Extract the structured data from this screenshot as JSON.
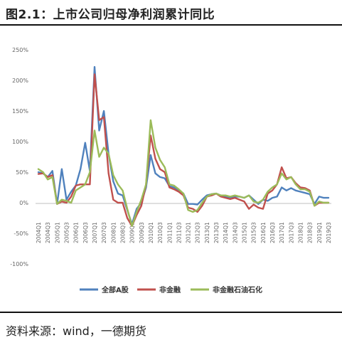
{
  "header": {
    "title": "图2.1：上市公司归母净利润累计同比"
  },
  "footer": {
    "source": "资料来源：wind，一德期货"
  },
  "chart_data": {
    "type": "line",
    "title": "",
    "xlabel": "",
    "ylabel": "",
    "ylim": [
      -100,
      250
    ],
    "y_ticks": [
      "250%",
      "200%",
      "150%",
      "100%",
      "50%",
      "0%",
      "-50%",
      "-100%"
    ],
    "y_tick_values": [
      250,
      200,
      150,
      100,
      50,
      0,
      -50,
      -100
    ],
    "grid": false,
    "legend_position": "bottom",
    "x_tick_labels": [
      "2004Q1",
      "2004Q3",
      "2005Q1",
      "2005Q3",
      "2006Q1",
      "2006Q3",
      "2007Q1",
      "2007Q3",
      "2008Q1",
      "2008Q3",
      "2009Q1",
      "2009Q3",
      "2010Q1",
      "2010Q3",
      "2011Q1",
      "2011Q3",
      "2012Q1",
      "2012Q3",
      "2013Q1",
      "2013Q3",
      "2014Q1",
      "2014Q3",
      "2015Q1",
      "2015Q3",
      "2016Q1",
      "2016Q3",
      "2017Q1",
      "2017Q3",
      "2018Q1",
      "2018Q3",
      "2019Q1",
      "2019Q3"
    ],
    "x": [
      "2004Q1",
      "2004Q2",
      "2004Q3",
      "2004Q4",
      "2005Q1",
      "2005Q2",
      "2005Q3",
      "2005Q4",
      "2006Q1",
      "2006Q2",
      "2006Q3",
      "2006Q4",
      "2007Q1",
      "2007Q2",
      "2007Q3",
      "2007Q4",
      "2008Q1",
      "2008Q2",
      "2008Q3",
      "2008Q4",
      "2009Q1",
      "2009Q2",
      "2009Q3",
      "2009Q4",
      "2010Q1",
      "2010Q2",
      "2010Q3",
      "2010Q4",
      "2011Q1",
      "2011Q2",
      "2011Q3",
      "2011Q4",
      "2012Q1",
      "2012Q2",
      "2012Q3",
      "2012Q4",
      "2013Q1",
      "2013Q2",
      "2013Q3",
      "2013Q4",
      "2014Q1",
      "2014Q2",
      "2014Q3",
      "2014Q4",
      "2015Q1",
      "2015Q2",
      "2015Q3",
      "2015Q4",
      "2016Q1",
      "2016Q2",
      "2016Q3",
      "2016Q4",
      "2017Q1",
      "2017Q2",
      "2017Q3",
      "2017Q4",
      "2018Q1",
      "2018Q2",
      "2018Q3",
      "2018Q4",
      "2019Q1",
      "2019Q2",
      "2019Q3"
    ],
    "series": [
      {
        "name": "全部A股",
        "color": "#4f81bd",
        "values": [
          50,
          48,
          42,
          52,
          -2,
          55,
          5,
          18,
          28,
          55,
          98,
          52,
          222,
          118,
          150,
          80,
          35,
          15,
          12,
          -12,
          -35,
          -10,
          0,
          25,
          78,
          48,
          42,
          40,
          27,
          25,
          20,
          15,
          -2,
          -2,
          -3,
          5,
          12,
          14,
          15,
          12,
          10,
          9,
          10,
          10,
          8,
          12,
          5,
          -2,
          5,
          3,
          8,
          10,
          25,
          20,
          24,
          20,
          18,
          16,
          14,
          -2,
          10,
          8,
          8
        ]
      },
      {
        "name": "非金融",
        "color": "#c0504d",
        "values": [
          47,
          48,
          42,
          45,
          -2,
          2,
          0,
          10,
          28,
          30,
          30,
          30,
          210,
          135,
          140,
          48,
          5,
          0,
          0,
          -25,
          -38,
          -20,
          -5,
          30,
          110,
          72,
          55,
          50,
          25,
          22,
          18,
          12,
          -8,
          -10,
          -15,
          -5,
          10,
          12,
          15,
          10,
          8,
          6,
          8,
          5,
          2,
          -10,
          -3,
          -8,
          -10,
          15,
          20,
          30,
          58,
          40,
          42,
          32,
          25,
          24,
          20,
          -5,
          0,
          0,
          0
        ]
      },
      {
        "name": "非金融石油石化",
        "color": "#9bbb59",
        "values": [
          55,
          50,
          38,
          42,
          -2,
          5,
          3,
          0,
          20,
          25,
          30,
          50,
          118,
          75,
          90,
          80,
          45,
          30,
          20,
          -10,
          -38,
          -15,
          5,
          30,
          135,
          90,
          70,
          58,
          30,
          28,
          22,
          15,
          -12,
          -15,
          -12,
          0,
          10,
          14,
          15,
          12,
          12,
          10,
          12,
          10,
          8,
          12,
          2,
          0,
          5,
          18,
          25,
          30,
          48,
          38,
          42,
          30,
          22,
          22,
          18,
          -5,
          2,
          0,
          0
        ]
      }
    ]
  }
}
